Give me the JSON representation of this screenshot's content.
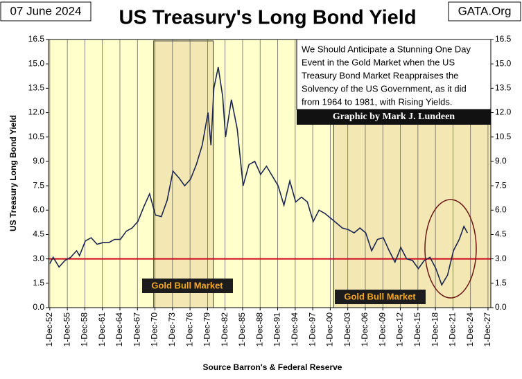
{
  "chart_data": {
    "type": "line",
    "title": "US Treasury's Long Bond Yield",
    "date": "07 June 2024",
    "source_site": "GATA.Org",
    "ylabel": "US Treasury  Long Bond Yield",
    "xlabel": "Source Barron's & Federal Reserve",
    "annotation": [
      "We Should Anticipate a Stunning One Day",
      "Event in the Gold Market when the US",
      "Treasury Bond Market Reappraises the",
      "Solvency of the US Government, as it did",
      "from 1964  to 1981,  with Rising Yields."
    ],
    "credit": "Graphic by Mark J. Lundeen",
    "color": "#1a2550",
    "x": [
      1952.9,
      1953.5,
      1954.5,
      1955.5,
      1956.5,
      1957.5,
      1958,
      1959,
      1960,
      1961,
      1962,
      1963,
      1964,
      1965,
      1966,
      1967,
      1968,
      1969,
      1970,
      1971,
      1972,
      1973,
      1974,
      1975,
      1976,
      1977,
      1978,
      1979,
      1980,
      1980.5,
      1981,
      1981.75,
      1982.5,
      1983,
      1984,
      1985,
      1986,
      1987,
      1988,
      1989,
      1990,
      1991,
      1992,
      1993,
      1994,
      1995,
      1996,
      1997,
      1998,
      1999,
      2000,
      2001,
      2002,
      2003,
      2004,
      2005,
      2006,
      2007,
      2008,
      2009,
      2010,
      2011,
      2012,
      2013,
      2014,
      2015,
      2016,
      2017,
      2018,
      2019,
      2020,
      2021,
      2022,
      2023,
      2023.8,
      2024.4
    ],
    "values": [
      2.7,
      3.1,
      2.5,
      2.9,
      3.1,
      3.5,
      3.2,
      4.1,
      4.3,
      3.9,
      4.0,
      4.0,
      4.2,
      4.2,
      4.7,
      4.9,
      5.3,
      6.2,
      7.0,
      5.7,
      5.6,
      6.6,
      8.4,
      8.0,
      7.5,
      7.9,
      8.8,
      10.0,
      12.0,
      10.0,
      13.5,
      14.8,
      13.0,
      10.5,
      12.8,
      11.0,
      7.5,
      8.8,
      9.0,
      8.2,
      8.7,
      8.1,
      7.5,
      6.3,
      7.8,
      6.5,
      6.8,
      6.5,
      5.3,
      6.0,
      5.8,
      5.5,
      5.2,
      4.9,
      4.8,
      4.6,
      4.9,
      4.6,
      3.5,
      4.2,
      4.3,
      3.5,
      2.8,
      3.7,
      3.0,
      2.9,
      2.4,
      2.9,
      3.1,
      2.4,
      1.4,
      2.0,
      3.5,
      4.2,
      5.0,
      4.6
    ],
    "xlim": [
      1952.7,
      2028.4
    ],
    "xticks": [
      {
        "value": 1952.92,
        "label": "1-Dec-52"
      },
      {
        "value": 1955.92,
        "label": "1-Dec-55"
      },
      {
        "value": 1958.92,
        "label": "1-Dec-58"
      },
      {
        "value": 1961.92,
        "label": "1-Dec-61"
      },
      {
        "value": 1964.92,
        "label": "1-Dec-64"
      },
      {
        "value": 1967.92,
        "label": "1-Dec-67"
      },
      {
        "value": 1970.92,
        "label": "1-Dec-70"
      },
      {
        "value": 1973.92,
        "label": "1-Dec-73"
      },
      {
        "value": 1976.92,
        "label": "1-Dec-76"
      },
      {
        "value": 1979.92,
        "label": "1-Dec-79"
      },
      {
        "value": 1982.92,
        "label": "1-Dec-82"
      },
      {
        "value": 1985.92,
        "label": "1-Dec-85"
      },
      {
        "value": 1988.92,
        "label": "1-Dec-88"
      },
      {
        "value": 1991.92,
        "label": "1-Dec-91"
      },
      {
        "value": 1994.92,
        "label": "1-Dec-94"
      },
      {
        "value": 1997.92,
        "label": "1-Dec-97"
      },
      {
        "value": 2000.92,
        "label": "1-Dec-00"
      },
      {
        "value": 2003.92,
        "label": "1-Dec-03"
      },
      {
        "value": 2006.92,
        "label": "1-Dec-06"
      },
      {
        "value": 2009.92,
        "label": "1-Dec-09"
      },
      {
        "value": 2012.92,
        "label": "1-Dec-12"
      },
      {
        "value": 2015.92,
        "label": "1-Dec-15"
      },
      {
        "value": 2018.92,
        "label": "1-Dec-18"
      },
      {
        "value": 2021.92,
        "label": "1-Dec-21"
      },
      {
        "value": 2024.92,
        "label": "1-Dec-24"
      },
      {
        "value": 2027.92,
        "label": "1-Dec-27"
      }
    ],
    "ylim": [
      0,
      16.5
    ],
    "yticks": [
      {
        "value": 0,
        "label": "0.0"
      },
      1.5,
      {
        "value": 3,
        "label": "3.0"
      },
      4.5,
      {
        "value": 6,
        "label": "6.0"
      },
      7.5,
      {
        "value": 9,
        "label": "9.0"
      },
      10.5,
      {
        "value": 12,
        "label": "12.0"
      },
      13.5,
      {
        "value": 15,
        "label": "15.0"
      },
      16.5
    ],
    "grid": true,
    "reference_line": {
      "value": 3,
      "color": "#d0021b"
    },
    "shaded_regions": [
      {
        "start": 1970.7,
        "end": 1980.9,
        "label": "Gold Bull Market",
        "color": "#f3e7b4"
      },
      {
        "start": 2001.5,
        "end": 2028.4,
        "label": "Gold Bull Market",
        "color": "#f3e7b4"
      }
    ]
  }
}
